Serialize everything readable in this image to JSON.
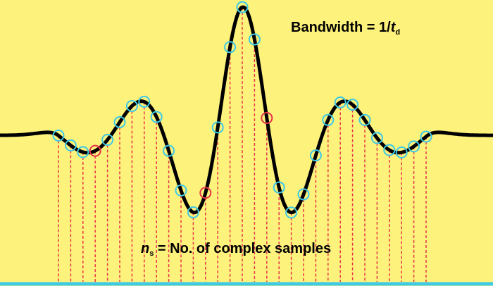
{
  "labels": {
    "bandwidth": {
      "text": "Bandwidth = 1/",
      "variable": "t",
      "subscript": "d"
    },
    "samples": {
      "variable": "n",
      "subscript": "s",
      "text": " = No. of complex samples"
    }
  }
}
